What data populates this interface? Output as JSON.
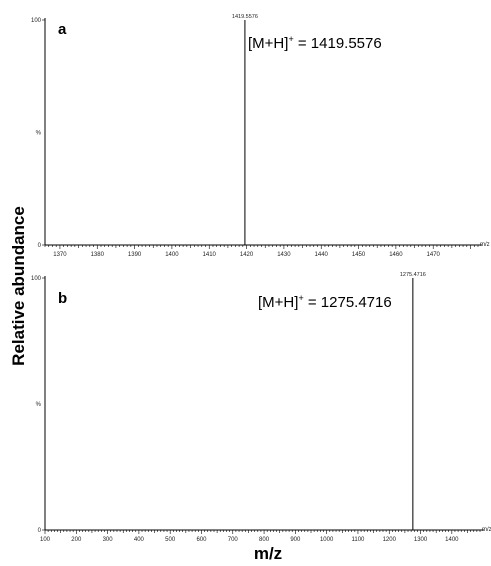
{
  "figure": {
    "ylabel": "Relative abundance",
    "xlabel": "m/z"
  },
  "chart_data": [
    {
      "type": "bar",
      "panel": "a",
      "title": "",
      "xlabel": "m/z",
      "ylabel": "%",
      "xlim": [
        1366,
        1482
      ],
      "ylim": [
        0,
        100
      ],
      "x_ticks": [
        1370,
        1380,
        1390,
        1400,
        1410,
        1420,
        1430,
        1440,
        1450,
        1460,
        1470
      ],
      "y_ticks": [
        0,
        100
      ],
      "peaks": [
        {
          "x": 1419.5576,
          "y": 100,
          "label": "1419.5576"
        }
      ],
      "annotation": {
        "prefix": "[M+H]",
        "sup": "+",
        "suffix": " = 1419.5576"
      }
    },
    {
      "type": "bar",
      "panel": "b",
      "title": "",
      "xlabel": "m/z",
      "ylabel": "%",
      "xlim": [
        100,
        1490
      ],
      "ylim": [
        0,
        100
      ],
      "x_ticks": [
        100,
        200,
        300,
        400,
        500,
        600,
        700,
        800,
        900,
        1000,
        1100,
        1200,
        1300,
        1400
      ],
      "y_ticks": [
        0,
        100
      ],
      "peaks": [
        {
          "x": 1275.4716,
          "y": 100,
          "label": "1275.4716"
        }
      ],
      "annotation": {
        "prefix": "[M+H]",
        "sup": "+",
        "suffix": " = 1275.4716"
      }
    }
  ]
}
